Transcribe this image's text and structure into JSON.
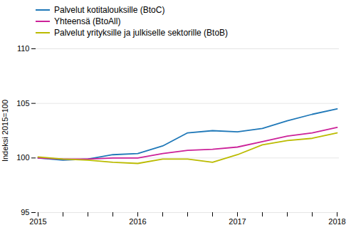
{
  "chart_data": {
    "type": "line",
    "ylabel": "Indeksi 2015=100",
    "categories": [
      "2015",
      null,
      null,
      null,
      "2016",
      null,
      null,
      null,
      "2017",
      null,
      null,
      null,
      "2018"
    ],
    "series": [
      {
        "name": "Palvelut kotitalouksille (BtoC)",
        "color": "#1F78B8",
        "values": [
          100.0,
          99.8,
          99.9,
          100.3,
          100.4,
          101.1,
          102.3,
          102.5,
          102.4,
          102.7,
          103.4,
          104.0,
          104.5
        ]
      },
      {
        "name": "Yhteensä (BtoAll)",
        "color": "#CC2299",
        "values": [
          100.0,
          99.9,
          99.9,
          100.0,
          100.0,
          100.4,
          100.7,
          100.8,
          101.0,
          101.5,
          102.0,
          102.3,
          102.8
        ]
      },
      {
        "name": "Palvelut yrityksille ja julkiselle sektorille (BtoB)",
        "color": "#BBBB00",
        "values": [
          100.1,
          99.9,
          99.8,
          99.6,
          99.5,
          99.9,
          99.9,
          99.6,
          100.3,
          101.2,
          101.6,
          101.8,
          102.3
        ]
      }
    ],
    "ylim": [
      95,
      110
    ],
    "yticks": [
      95,
      100,
      105,
      110
    ],
    "grid": true,
    "legend": "upper left"
  }
}
